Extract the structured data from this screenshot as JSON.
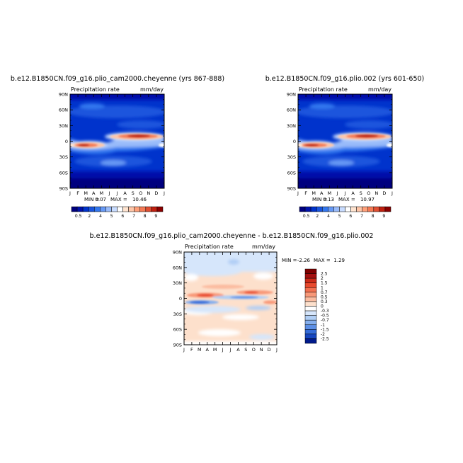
{
  "panels": [
    {
      "title": "b.e12.B1850CN.f09_g16.plio_cam2000.cheyenne (yrs 867-888)",
      "left_label": "Precipitation rate",
      "right_label": "mm/day",
      "min_label": "MIN =",
      "min_value": "0.07",
      "max_label": "MAX =",
      "max_value": "10.46"
    },
    {
      "title": "b.e12.B1850CN.f09_g16.plio.002 (yrs 601-650)",
      "left_label": "Precipitation rate",
      "right_label": "mm/day",
      "min_label": "MIN =",
      "min_value": "0.13",
      "max_label": "MAX =",
      "max_value": "10.97"
    },
    {
      "title": "b.e12.B1850CN.f09_g16.plio_cam2000.cheyenne - b.e12.B1850CN.f09_g16.plio.002",
      "left_label": "Precipitation rate",
      "right_label": "mm/day",
      "min_label": "MIN =",
      "min_value": "-2.26",
      "max_label": "MAX =",
      "max_value": "1.29"
    }
  ],
  "chart_data": [
    {
      "type": "heatmap",
      "title": "b.e12.B1850CN.f09_g16.plio_cam2000.cheyenne (yrs 867-888)",
      "x_ticks": [
        "J",
        "F",
        "M",
        "A",
        "M",
        "J",
        "J",
        "A",
        "S",
        "O",
        "N",
        "D",
        "J"
      ],
      "y_ticks": [
        "90N",
        "60N",
        "30N",
        "0",
        "30S",
        "60S",
        "90S"
      ],
      "colorbar_labels": [
        "0.5",
        "2",
        "4",
        "5",
        "6",
        "7",
        "8",
        "9"
      ],
      "colors": [
        "#00007f",
        "#0011aa",
        "#0033cc",
        "#1a55dd",
        "#3377ee",
        "#6699f5",
        "#99bbfa",
        "#c8dcff",
        "#ffffff",
        "#ffe4d0",
        "#ffc6a8",
        "#ffa07a",
        "#f47a55",
        "#e04f33",
        "#c02010",
        "#8b0000"
      ],
      "units": "mm/day",
      "min": 0.07,
      "max": 10.46
    },
    {
      "type": "heatmap",
      "title": "b.e12.B1850CN.f09_g16.plio.002 (yrs 601-650)",
      "x_ticks": [
        "J",
        "F",
        "M",
        "A",
        "M",
        "J",
        "J",
        "A",
        "S",
        "O",
        "N",
        "D",
        "J"
      ],
      "y_ticks": [
        "90N",
        "60N",
        "30N",
        "0",
        "30S",
        "60S",
        "90S"
      ],
      "colorbar_labels": [
        "0.5",
        "2",
        "4",
        "5",
        "6",
        "7",
        "8",
        "9"
      ],
      "colors": [
        "#00007f",
        "#0011aa",
        "#0033cc",
        "#1a55dd",
        "#3377ee",
        "#6699f5",
        "#99bbfa",
        "#c8dcff",
        "#ffffff",
        "#ffe4d0",
        "#ffc6a8",
        "#ffa07a",
        "#f47a55",
        "#e04f33",
        "#c02010",
        "#8b0000"
      ],
      "units": "mm/day",
      "min": 0.13,
      "max": 10.97
    },
    {
      "type": "heatmap",
      "title": "b.e12.B1850CN.f09_g16.plio_cam2000.cheyenne - b.e12.B1850CN.f09_g16.plio.002",
      "x_ticks": [
        "J",
        "F",
        "M",
        "A",
        "M",
        "J",
        "J",
        "A",
        "S",
        "O",
        "N",
        "D",
        "J"
      ],
      "y_ticks": [
        "90N",
        "60N",
        "30N",
        "0",
        "30S",
        "60S",
        "90S"
      ],
      "colorbar_labels": [
        "2.5",
        "2",
        "1.5",
        "1",
        "0.7",
        "0.5",
        "0.3",
        "0",
        "-0.3",
        "-0.5",
        "-0.7",
        "-1",
        "-1.5",
        "-2",
        "-2.5"
      ],
      "colors": [
        "#7f0000",
        "#a50f0f",
        "#cc2a18",
        "#e8492d",
        "#f27050",
        "#f89878",
        "#fbbca0",
        "#fde0cc",
        "#ffffff",
        "#d6e6fb",
        "#b0cef5",
        "#85afee",
        "#5c8fe6",
        "#356cd9",
        "#1646c0",
        "#001a8c"
      ],
      "units": "mm/day",
      "min": -2.26,
      "max": 1.29
    }
  ]
}
